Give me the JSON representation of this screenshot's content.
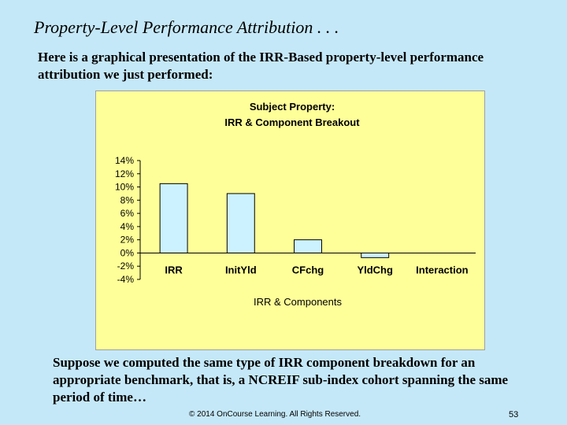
{
  "slide": {
    "title": "Property-Level Performance Attribution . . .",
    "intro": "Here is a graphical presentation of the IRR-Based property-level performance attribution we just performed:",
    "outro": "Suppose we computed the same type of IRR component breakdown for an appropriate benchmark, that is, a NCREIF sub-index cohort spanning the same period of time…",
    "footer": "© 2014 OnCourse Learning. All Rights Reserved.",
    "page_number": "53"
  },
  "chart_data": {
    "type": "bar",
    "title_line1": "Subject Property:",
    "title_line2": "IRR & Component Breakout",
    "xlabel": "IRR & Components",
    "ylabel": "",
    "categories": [
      "IRR",
      "InitYld",
      "CFchg",
      "YldChg",
      "Interaction"
    ],
    "values": [
      10.5,
      9.0,
      2.0,
      -0.7,
      0.0
    ],
    "ylim": [
      -4,
      14
    ],
    "yticks": [
      14,
      12,
      10,
      8,
      6,
      4,
      2,
      0,
      -2,
      -4
    ],
    "ytick_labels": [
      "14%",
      "12%",
      "10%",
      "8%",
      "6%",
      "4%",
      "2%",
      "0%",
      "-2%",
      "-4%"
    ],
    "bar_fill": "#ccf2ff",
    "bar_stroke": "#000000",
    "panel_bg": "#ffff99",
    "grid": false,
    "legend": "none"
  }
}
